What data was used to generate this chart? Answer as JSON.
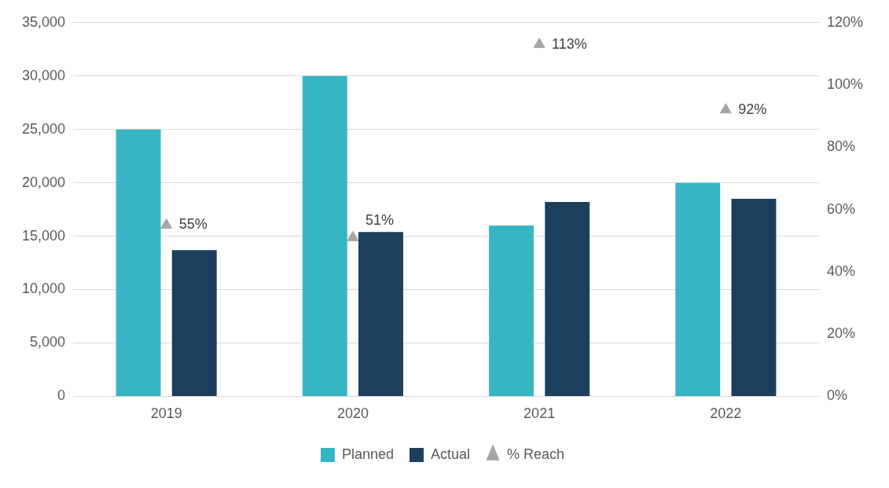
{
  "chart_data": {
    "type": "bar",
    "categories": [
      "2019",
      "2020",
      "2021",
      "2022"
    ],
    "series": [
      {
        "name": "Planned",
        "color": "#38b5c4",
        "values": [
          25000,
          30000,
          16000,
          20000
        ]
      },
      {
        "name": "Actual",
        "color": "#1c3f5e",
        "values": [
          13700,
          15400,
          18200,
          18500
        ]
      },
      {
        "name": "% Reach",
        "type": "scatter",
        "axis": "y2",
        "marker": "triangle",
        "color": "#a5a5a5",
        "values": [
          55,
          51,
          113,
          92
        ],
        "value_labels": [
          "55%",
          "51%",
          "113%",
          "92%"
        ]
      }
    ],
    "ylim": [
      0,
      35000
    ],
    "yticks": [
      {
        "value": 0,
        "label": "0"
      },
      {
        "value": 5000,
        "label": "5,000"
      },
      {
        "value": 10000,
        "label": "10,000"
      },
      {
        "value": 15000,
        "label": "15,000"
      },
      {
        "value": 20000,
        "label": "20,000"
      },
      {
        "value": 25000,
        "label": "25,000"
      },
      {
        "value": 30000,
        "label": "30,000"
      },
      {
        "value": 35000,
        "label": "35,000"
      }
    ],
    "y2lim": [
      0,
      120
    ],
    "y2ticks": [
      {
        "value": 0,
        "label": "0%"
      },
      {
        "value": 20,
        "label": "20%"
      },
      {
        "value": 40,
        "label": "40%"
      },
      {
        "value": 60,
        "label": "60%"
      },
      {
        "value": 80,
        "label": "80%"
      },
      {
        "value": 100,
        "label": "100%"
      },
      {
        "value": 120,
        "label": "120%"
      }
    ],
    "grid": "y",
    "legend": "bottom"
  }
}
